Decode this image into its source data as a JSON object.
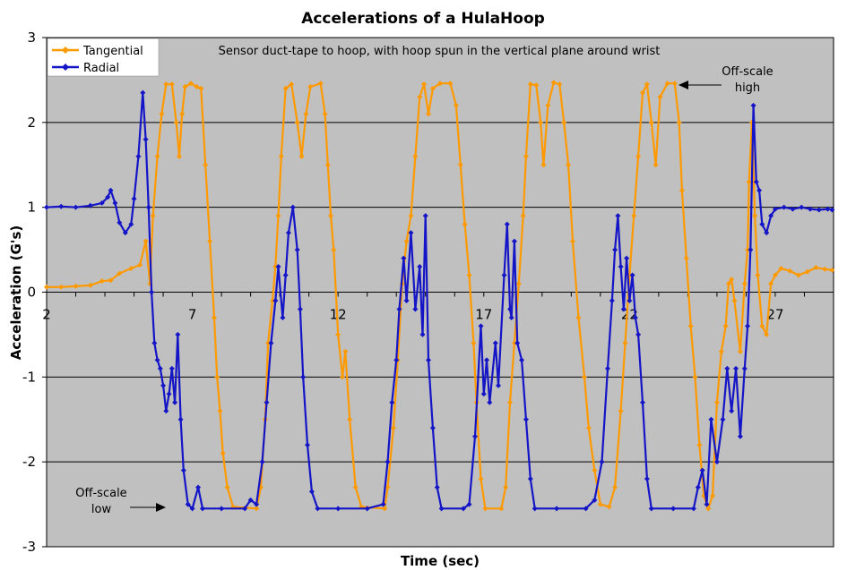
{
  "chart_data": {
    "type": "line",
    "title": "Accelerations of a HulaHoop",
    "xlabel": "Time (sec)",
    "ylabel": "Acceleration (G's)",
    "xlim": [
      2,
      29
    ],
    "ylim": [
      -3,
      3
    ],
    "xticks": [
      2,
      7,
      12,
      17,
      22,
      27
    ],
    "yticks": [
      -3,
      -2,
      -1,
      0,
      1,
      2,
      3
    ],
    "grid": "horizontal",
    "background": "#c0c0c0",
    "legend_position": "top-left",
    "annotations": {
      "subtitle": "Sensor duct-tape to hoop, with hoop spun in the vertical plane around wrist",
      "high_line1": "Off-scale",
      "high_line2": "high",
      "low_line1": "Off-scale",
      "low_line2": "low"
    },
    "series": [
      {
        "name": "Tangential",
        "color": "#ff9900",
        "points": [
          [
            2.0,
            0.06
          ],
          [
            2.5,
            0.06
          ],
          [
            3.0,
            0.07
          ],
          [
            3.5,
            0.08
          ],
          [
            3.9,
            0.13
          ],
          [
            4.2,
            0.14
          ],
          [
            4.5,
            0.22
          ],
          [
            4.9,
            0.28
          ],
          [
            5.2,
            0.32
          ],
          [
            5.4,
            0.6
          ],
          [
            5.55,
            0.1
          ],
          [
            5.65,
            0.9
          ],
          [
            5.8,
            1.6
          ],
          [
            5.95,
            2.1
          ],
          [
            6.1,
            2.45
          ],
          [
            6.3,
            2.45
          ],
          [
            6.45,
            2.0
          ],
          [
            6.55,
            1.6
          ],
          [
            6.65,
            2.1
          ],
          [
            6.75,
            2.42
          ],
          [
            6.95,
            2.46
          ],
          [
            7.15,
            2.42
          ],
          [
            7.3,
            2.4
          ],
          [
            7.45,
            1.5
          ],
          [
            7.6,
            0.6
          ],
          [
            7.75,
            -0.3
          ],
          [
            7.85,
            -1.0
          ],
          [
            7.95,
            -1.4
          ],
          [
            8.05,
            -1.9
          ],
          [
            8.2,
            -2.3
          ],
          [
            8.4,
            -2.53
          ],
          [
            9.2,
            -2.55
          ],
          [
            9.35,
            -2.3
          ],
          [
            9.5,
            -1.5
          ],
          [
            9.6,
            -0.6
          ],
          [
            9.75,
            -0.1
          ],
          [
            9.85,
            0.3
          ],
          [
            9.95,
            0.9
          ],
          [
            10.05,
            1.6
          ],
          [
            10.2,
            2.4
          ],
          [
            10.4,
            2.45
          ],
          [
            10.6,
            2.0
          ],
          [
            10.75,
            1.6
          ],
          [
            10.9,
            2.1
          ],
          [
            11.05,
            2.42
          ],
          [
            11.4,
            2.46
          ],
          [
            11.55,
            2.1
          ],
          [
            11.65,
            1.5
          ],
          [
            11.75,
            0.9
          ],
          [
            11.85,
            0.5
          ],
          [
            12.0,
            -0.5
          ],
          [
            12.15,
            -1.0
          ],
          [
            12.25,
            -0.7
          ],
          [
            12.4,
            -1.5
          ],
          [
            12.6,
            -2.3
          ],
          [
            12.8,
            -2.53
          ],
          [
            13.6,
            -2.55
          ],
          [
            13.7,
            -2.3
          ],
          [
            13.9,
            -1.6
          ],
          [
            14.05,
            -0.8
          ],
          [
            14.2,
            0.1
          ],
          [
            14.35,
            0.6
          ],
          [
            14.5,
            0.9
          ],
          [
            14.65,
            1.6
          ],
          [
            14.8,
            2.3
          ],
          [
            14.95,
            2.45
          ],
          [
            15.1,
            2.1
          ],
          [
            15.25,
            2.4
          ],
          [
            15.5,
            2.46
          ],
          [
            15.85,
            2.46
          ],
          [
            16.05,
            2.2
          ],
          [
            16.2,
            1.5
          ],
          [
            16.35,
            0.8
          ],
          [
            16.5,
            0.2
          ],
          [
            16.65,
            -0.6
          ],
          [
            16.75,
            -1.3
          ],
          [
            16.9,
            -2.2
          ],
          [
            17.05,
            -2.55
          ],
          [
            17.6,
            -2.55
          ],
          [
            17.75,
            -2.3
          ],
          [
            17.9,
            -1.3
          ],
          [
            18.05,
            -0.6
          ],
          [
            18.2,
            0.1
          ],
          [
            18.35,
            0.9
          ],
          [
            18.45,
            1.6
          ],
          [
            18.6,
            2.45
          ],
          [
            18.8,
            2.44
          ],
          [
            18.95,
            2.0
          ],
          [
            19.05,
            1.5
          ],
          [
            19.2,
            2.2
          ],
          [
            19.4,
            2.47
          ],
          [
            19.6,
            2.45
          ],
          [
            19.75,
            2.0
          ],
          [
            19.9,
            1.5
          ],
          [
            20.05,
            0.6
          ],
          [
            20.25,
            -0.3
          ],
          [
            20.45,
            -1.0
          ],
          [
            20.6,
            -1.6
          ],
          [
            20.8,
            -2.1
          ],
          [
            21.0,
            -2.5
          ],
          [
            21.3,
            -2.53
          ],
          [
            21.5,
            -2.3
          ],
          [
            21.7,
            -1.4
          ],
          [
            21.85,
            -0.6
          ],
          [
            22.0,
            0.2
          ],
          [
            22.15,
            0.9
          ],
          [
            22.3,
            1.6
          ],
          [
            22.45,
            2.35
          ],
          [
            22.6,
            2.45
          ],
          [
            22.75,
            2.0
          ],
          [
            22.9,
            1.5
          ],
          [
            23.05,
            2.3
          ],
          [
            23.3,
            2.46
          ],
          [
            23.55,
            2.46
          ],
          [
            23.7,
            2.0
          ],
          [
            23.8,
            1.2
          ],
          [
            23.95,
            0.4
          ],
          [
            24.1,
            -0.4
          ],
          [
            24.25,
            -1.0
          ],
          [
            24.4,
            -1.8
          ],
          [
            24.55,
            -2.4
          ],
          [
            24.7,
            -2.55
          ],
          [
            24.85,
            -2.4
          ],
          [
            25.0,
            -1.3
          ],
          [
            25.15,
            -0.7
          ],
          [
            25.3,
            -0.4
          ],
          [
            25.4,
            0.1
          ],
          [
            25.5,
            0.15
          ],
          [
            25.6,
            -0.1
          ],
          [
            25.8,
            -0.7
          ],
          [
            25.95,
            0.1
          ],
          [
            26.05,
            0.5
          ],
          [
            26.1,
            1.3
          ],
          [
            26.2,
            2.0
          ],
          [
            26.3,
            0.9
          ],
          [
            26.4,
            0.2
          ],
          [
            26.55,
            -0.4
          ],
          [
            26.7,
            -0.5
          ],
          [
            26.85,
            0.1
          ],
          [
            27.0,
            0.2
          ],
          [
            27.2,
            0.28
          ],
          [
            27.5,
            0.25
          ],
          [
            27.8,
            0.2
          ],
          [
            28.1,
            0.24
          ],
          [
            28.4,
            0.29
          ],
          [
            28.7,
            0.27
          ],
          [
            28.95,
            0.26
          ]
        ]
      },
      {
        "name": "Radial",
        "color": "#1515c8",
        "points": [
          [
            2.0,
            1.0
          ],
          [
            2.5,
            1.01
          ],
          [
            3.0,
            1.0
          ],
          [
            3.5,
            1.02
          ],
          [
            3.9,
            1.05
          ],
          [
            4.1,
            1.12
          ],
          [
            4.2,
            1.2
          ],
          [
            4.35,
            1.05
          ],
          [
            4.5,
            0.82
          ],
          [
            4.7,
            0.7
          ],
          [
            4.9,
            0.8
          ],
          [
            5.0,
            1.1
          ],
          [
            5.15,
            1.6
          ],
          [
            5.3,
            2.35
          ],
          [
            5.4,
            1.8
          ],
          [
            5.5,
            1.0
          ],
          [
            5.6,
            0.0
          ],
          [
            5.7,
            -0.6
          ],
          [
            5.8,
            -0.8
          ],
          [
            5.9,
            -0.9
          ],
          [
            6.0,
            -1.1
          ],
          [
            6.1,
            -1.4
          ],
          [
            6.2,
            -1.2
          ],
          [
            6.3,
            -0.9
          ],
          [
            6.4,
            -1.3
          ],
          [
            6.5,
            -0.5
          ],
          [
            6.6,
            -1.5
          ],
          [
            6.7,
            -2.1
          ],
          [
            6.85,
            -2.5
          ],
          [
            7.0,
            -2.55
          ],
          [
            7.2,
            -2.3
          ],
          [
            7.35,
            -2.55
          ],
          [
            8.0,
            -2.55
          ],
          [
            8.8,
            -2.55
          ],
          [
            9.0,
            -2.45
          ],
          [
            9.2,
            -2.5
          ],
          [
            9.4,
            -2.0
          ],
          [
            9.55,
            -1.3
          ],
          [
            9.7,
            -0.6
          ],
          [
            9.85,
            -0.1
          ],
          [
            9.95,
            0.3
          ],
          [
            10.1,
            -0.3
          ],
          [
            10.2,
            0.2
          ],
          [
            10.3,
            0.7
          ],
          [
            10.45,
            1.0
          ],
          [
            10.6,
            0.5
          ],
          [
            10.7,
            -0.2
          ],
          [
            10.8,
            -1.0
          ],
          [
            10.95,
            -1.8
          ],
          [
            11.1,
            -2.35
          ],
          [
            11.3,
            -2.55
          ],
          [
            12.0,
            -2.55
          ],
          [
            13.0,
            -2.55
          ],
          [
            13.55,
            -2.5
          ],
          [
            13.7,
            -2.0
          ],
          [
            13.85,
            -1.3
          ],
          [
            14.0,
            -0.8
          ],
          [
            14.1,
            -0.2
          ],
          [
            14.25,
            0.4
          ],
          [
            14.35,
            -0.1
          ],
          [
            14.5,
            0.7
          ],
          [
            14.65,
            -0.2
          ],
          [
            14.8,
            0.3
          ],
          [
            14.9,
            -0.5
          ],
          [
            15.0,
            0.9
          ],
          [
            15.1,
            -0.8
          ],
          [
            15.25,
            -1.6
          ],
          [
            15.4,
            -2.3
          ],
          [
            15.55,
            -2.55
          ],
          [
            16.3,
            -2.55
          ],
          [
            16.5,
            -2.5
          ],
          [
            16.7,
            -1.7
          ],
          [
            16.9,
            -0.4
          ],
          [
            17.0,
            -1.2
          ],
          [
            17.1,
            -0.8
          ],
          [
            17.2,
            -1.3
          ],
          [
            17.4,
            -0.6
          ],
          [
            17.5,
            -1.1
          ],
          [
            17.7,
            0.2
          ],
          [
            17.8,
            0.8
          ],
          [
            17.9,
            -0.2
          ],
          [
            17.95,
            -0.3
          ],
          [
            18.05,
            0.6
          ],
          [
            18.15,
            -0.6
          ],
          [
            18.3,
            -0.8
          ],
          [
            18.45,
            -1.5
          ],
          [
            18.6,
            -2.2
          ],
          [
            18.75,
            -2.55
          ],
          [
            19.5,
            -2.55
          ],
          [
            20.5,
            -2.55
          ],
          [
            20.8,
            -2.45
          ],
          [
            21.05,
            -2.0
          ],
          [
            21.25,
            -0.9
          ],
          [
            21.4,
            -0.1
          ],
          [
            21.5,
            0.5
          ],
          [
            21.6,
            0.9
          ],
          [
            21.7,
            0.3
          ],
          [
            21.8,
            -0.2
          ],
          [
            21.9,
            0.4
          ],
          [
            22.0,
            -0.1
          ],
          [
            22.1,
            0.2
          ],
          [
            22.2,
            -0.3
          ],
          [
            22.3,
            -0.5
          ],
          [
            22.45,
            -1.3
          ],
          [
            22.6,
            -2.2
          ],
          [
            22.75,
            -2.55
          ],
          [
            23.5,
            -2.55
          ],
          [
            24.2,
            -2.55
          ],
          [
            24.35,
            -2.3
          ],
          [
            24.5,
            -2.1
          ],
          [
            24.65,
            -2.5
          ],
          [
            24.8,
            -1.5
          ],
          [
            25.0,
            -2.0
          ],
          [
            25.2,
            -1.5
          ],
          [
            25.35,
            -0.9
          ],
          [
            25.5,
            -1.4
          ],
          [
            25.65,
            -0.9
          ],
          [
            25.8,
            -1.7
          ],
          [
            25.95,
            -0.9
          ],
          [
            26.05,
            -0.4
          ],
          [
            26.15,
            0.5
          ],
          [
            26.25,
            2.2
          ],
          [
            26.35,
            1.3
          ],
          [
            26.45,
            1.2
          ],
          [
            26.55,
            0.8
          ],
          [
            26.7,
            0.7
          ],
          [
            26.85,
            0.9
          ],
          [
            27.0,
            0.98
          ],
          [
            27.3,
            1.0
          ],
          [
            27.6,
            0.98
          ],
          [
            27.9,
            1.0
          ],
          [
            28.2,
            0.98
          ],
          [
            28.5,
            0.97
          ],
          [
            28.8,
            0.98
          ],
          [
            28.95,
            0.97
          ]
        ]
      }
    ]
  }
}
